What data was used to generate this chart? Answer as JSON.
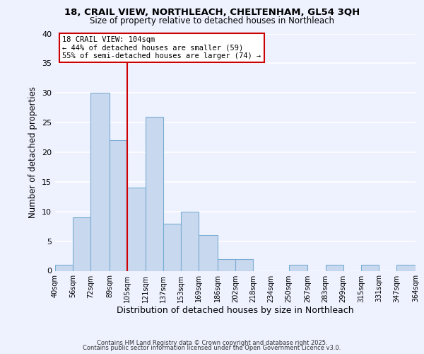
{
  "title_line1": "18, CRAIL VIEW, NORTHLEACH, CHELTENHAM, GL54 3QH",
  "title_line2": "Size of property relative to detached houses in Northleach",
  "xlabel": "Distribution of detached houses by size in Northleach",
  "ylabel": "Number of detached properties",
  "bar_edges": [
    40,
    56,
    72,
    89,
    105,
    121,
    137,
    153,
    169,
    186,
    202,
    218,
    234,
    250,
    267,
    283,
    299,
    315,
    331,
    347,
    364
  ],
  "bar_heights": [
    1,
    9,
    30,
    22,
    14,
    26,
    8,
    10,
    6,
    2,
    2,
    0,
    0,
    1,
    0,
    1,
    0,
    1,
    0,
    1
  ],
  "tick_labels": [
    "40sqm",
    "56sqm",
    "72sqm",
    "89sqm",
    "105sqm",
    "121sqm",
    "137sqm",
    "153sqm",
    "169sqm",
    "186sqm",
    "202sqm",
    "218sqm",
    "234sqm",
    "250sqm",
    "267sqm",
    "283sqm",
    "299sqm",
    "315sqm",
    "331sqm",
    "347sqm",
    "364sqm"
  ],
  "bar_color": "#c8d8ee",
  "bar_edgecolor": "#7aadd4",
  "vline_x": 105,
  "vline_color": "#cc0000",
  "annotation_title": "18 CRAIL VIEW: 104sqm",
  "annotation_line2": "← 44% of detached houses are smaller (59)",
  "annotation_line3": "55% of semi-detached houses are larger (74) →",
  "annotation_box_facecolor": "#ffffff",
  "annotation_box_edgecolor": "#cc0000",
  "ylim": [
    0,
    40
  ],
  "yticks": [
    0,
    5,
    10,
    15,
    20,
    25,
    30,
    35,
    40
  ],
  "bg_color": "#eef2ff",
  "grid_color": "#ffffff",
  "footer_line1": "Contains HM Land Registry data © Crown copyright and database right 2025.",
  "footer_line2": "Contains public sector information licensed under the Open Government Licence v3.0."
}
